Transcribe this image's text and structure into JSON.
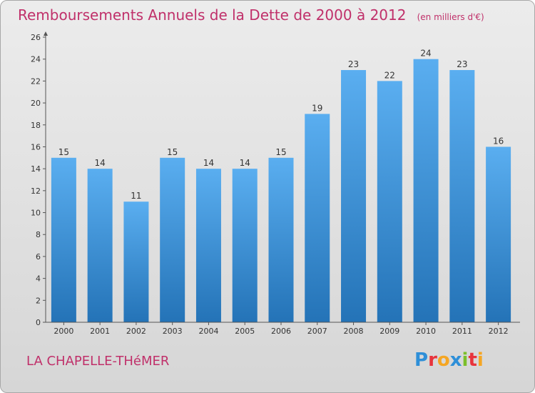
{
  "title": "Remboursements Annuels de la Dette de 2000 à 2012",
  "unit": "(en milliers d'€)",
  "location": "LA CHAPELLE-THéMER",
  "logo": {
    "letters": [
      {
        "char": "P",
        "color": "#2e8fd8"
      },
      {
        "char": "r",
        "color": "#e8343c"
      },
      {
        "char": "o",
        "color": "#f5a623"
      },
      {
        "char": "x",
        "color": "#2e8fd8"
      },
      {
        "char": "i",
        "color": "#7bbf2a"
      },
      {
        "char": "t",
        "color": "#e8343c"
      },
      {
        "char": "i",
        "color": "#f5a623"
      }
    ]
  },
  "colors": {
    "bar_top": "#5aaef0",
    "bar_bottom": "#2473b7",
    "title": "#c0306a"
  },
  "chart_data": {
    "type": "bar",
    "categories": [
      "2000",
      "2001",
      "2002",
      "2003",
      "2004",
      "2005",
      "2006",
      "2007",
      "2008",
      "2009",
      "2010",
      "2011",
      "2012"
    ],
    "values": [
      15,
      14,
      11,
      15,
      14,
      14,
      15,
      19,
      23,
      22,
      24,
      23,
      16
    ],
    "ylim": [
      0,
      26
    ],
    "yticks": [
      0,
      2,
      4,
      6,
      8,
      10,
      12,
      14,
      16,
      18,
      20,
      22,
      24,
      26
    ],
    "grid": false,
    "title": "Remboursements Annuels de la Dette de 2000 à 2012",
    "xlabel": "",
    "ylabel": ""
  }
}
